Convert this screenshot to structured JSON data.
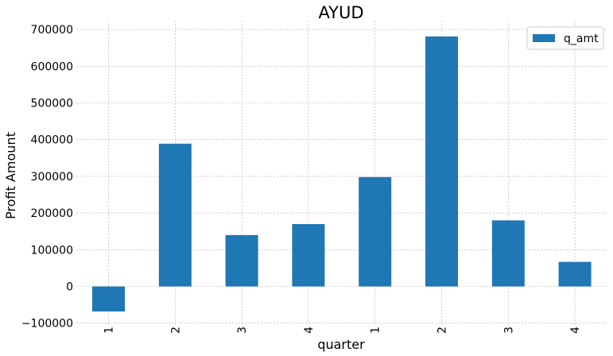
{
  "chart_data": {
    "type": "bar",
    "title": "AYUD",
    "xlabel": "quarter",
    "ylabel": "Profit Amount",
    "categories": [
      "1",
      "2",
      "3",
      "4",
      "1",
      "2",
      "3",
      "4"
    ],
    "series": [
      {
        "name": "q_amt",
        "values": [
          -68000,
          389000,
          140000,
          170000,
          298000,
          681000,
          180000,
          67000
        ],
        "color": "#1f77b4"
      }
    ],
    "ylim": [
      -110000,
      720000
    ],
    "yticks": [
      -100000,
      0,
      100000,
      200000,
      300000,
      400000,
      500000,
      600000,
      700000
    ],
    "ytick_labels": [
      "−100000",
      "0",
      "100000",
      "200000",
      "300000",
      "400000",
      "500000",
      "600000",
      "700000"
    ],
    "grid": true,
    "legend_position": "top-right"
  }
}
